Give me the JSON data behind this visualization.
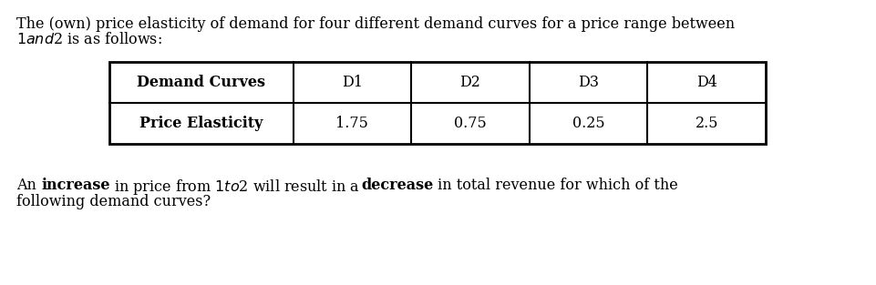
{
  "title_line1": "The (own) price elasticity of demand for four different demand curves for a price range between",
  "title_line2": "\\$1 and \\$2 is as follows:",
  "table_header": [
    "Demand Curves",
    "D1",
    "D2",
    "D3",
    "D4"
  ],
  "table_row_label": "Price Elasticity",
  "table_values": [
    "1.75",
    "0.75",
    "0.25",
    "2.5"
  ],
  "footer_line1_parts": [
    {
      "text": "An ",
      "bold": false
    },
    {
      "text": "increase",
      "bold": true
    },
    {
      "text": " in price from \\$1 to \\$2 will result in a ",
      "bold": false
    },
    {
      "text": "decrease",
      "bold": true
    },
    {
      "text": " in total revenue for which of the",
      "bold": false
    }
  ],
  "footer_line2": "following demand curves?",
  "bg_color": "#ffffff",
  "text_color": "#000000",
  "font_size": 11.5,
  "table_font_size": 11.5
}
